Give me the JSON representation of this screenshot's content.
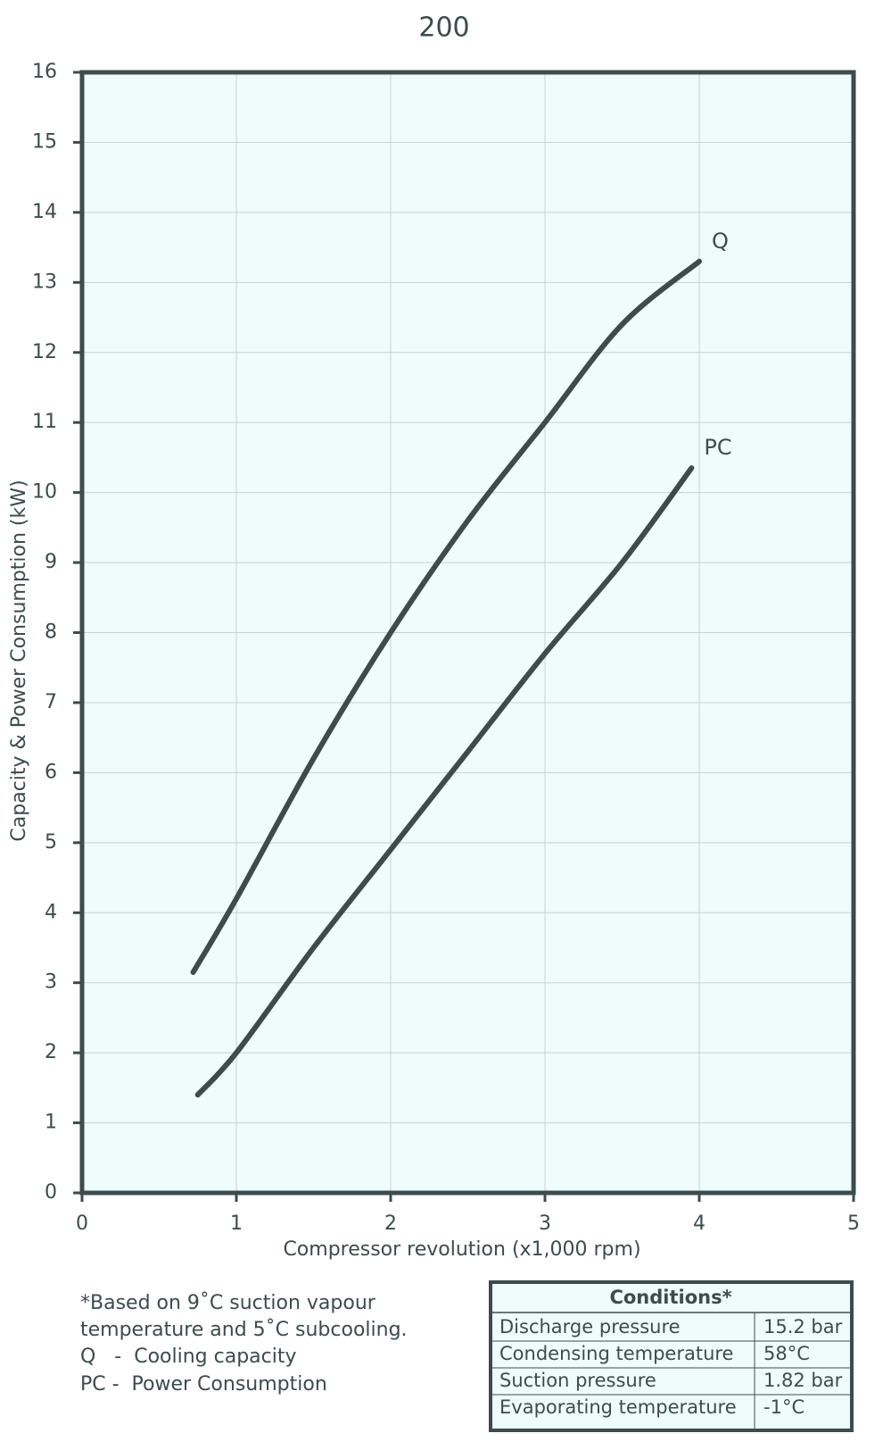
{
  "chart_data": {
    "type": "line",
    "title": "200",
    "x_label": "Compressor revolution (x1,000 rpm)",
    "y_label": "Capacity & Power Consumption (kW)",
    "series": [
      {
        "name": "Q",
        "color": "#3d4b4b",
        "x": [
          0.72,
          1,
          1.5,
          2,
          2.5,
          3,
          3.5,
          4.0
        ],
        "values": [
          3.15,
          4.2,
          6.2,
          8.0,
          9.6,
          11.0,
          12.4,
          13.3
        ]
      },
      {
        "name": "PC",
        "color": "#3d4b4b",
        "x": [
          0.75,
          1,
          1.5,
          2,
          2.5,
          3,
          3.5,
          3.95
        ],
        "values": [
          1.4,
          2.0,
          3.5,
          4.9,
          6.3,
          7.7,
          9.0,
          10.35
        ]
      }
    ],
    "xlim": [
      0,
      5
    ],
    "xticks": [
      0,
      1,
      2,
      3,
      4,
      5
    ],
    "ylim": [
      0,
      16
    ],
    "yticks": [
      0,
      1,
      2,
      3,
      4,
      5,
      6,
      7,
      8,
      9,
      10,
      11,
      12,
      13,
      14,
      15,
      16
    ],
    "grid": true
  },
  "notes": [
    "*Based on 9˚C suction vapour",
    "temperature and 5˚C subcooling.",
    "Q   -  Cooling capacity",
    "PC -  Power Consumption"
  ],
  "conditions": {
    "title": "Conditions*",
    "rows": [
      [
        "Discharge pressure",
        "15.2 bar"
      ],
      [
        "Condensing temperature",
        "58°C"
      ],
      [
        "Suction pressure",
        "1.82 bar"
      ],
      [
        "Evaporating temperature",
        "-1°C"
      ]
    ]
  }
}
